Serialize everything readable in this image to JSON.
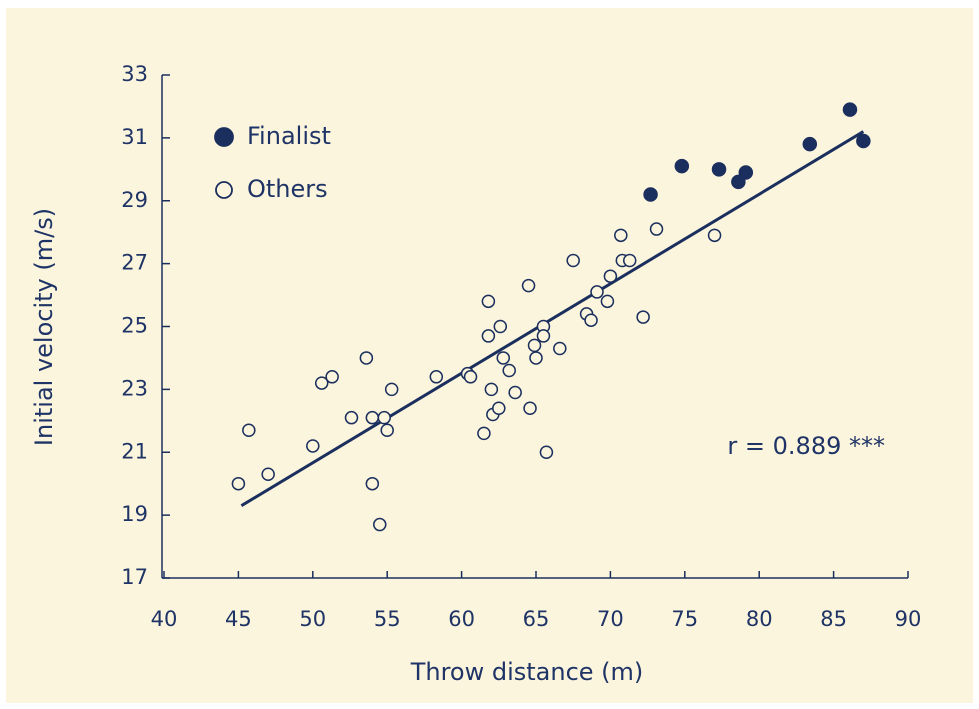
{
  "chart_data": {
    "type": "scatter",
    "xlabel": "Throw distance (m)",
    "ylabel": "Initial velocity (m/s)",
    "xlim": [
      40,
      90
    ],
    "xticks": [
      40,
      45,
      50,
      55,
      60,
      65,
      70,
      75,
      80,
      85,
      90
    ],
    "ylim": [
      17,
      33
    ],
    "yticks": [
      17,
      19,
      21,
      23,
      25,
      27,
      29,
      31,
      33
    ],
    "legend": "upper left",
    "annotation": "r = 0.889 ***",
    "trendline": {
      "x": [
        45.2,
        87.0
      ],
      "y": [
        19.3,
        31.2
      ],
      "color": "#1b2f5e"
    },
    "series": [
      {
        "name": "Finalist",
        "color": "#1b2f5e",
        "marker": "filled",
        "x": [
          72.7,
          74.8,
          77.3,
          78.6,
          79.1,
          83.4,
          86.1,
          87.0
        ],
        "values": [
          29.2,
          30.1,
          30.0,
          29.6,
          29.9,
          30.8,
          31.9,
          30.9
        ]
      },
      {
        "name": "Others",
        "color": "#1b2f5e",
        "marker": "open",
        "x": [
          45.0,
          45.7,
          47.0,
          50.0,
          50.6,
          51.3,
          52.6,
          53.6,
          54.0,
          54.0,
          54.5,
          54.8,
          55.0,
          55.3,
          58.3,
          60.4,
          60.6,
          61.5,
          61.8,
          61.8,
          62.0,
          62.1,
          62.5,
          62.6,
          62.8,
          63.2,
          63.6,
          64.5,
          64.6,
          64.9,
          65.0,
          65.5,
          65.5,
          65.7,
          66.6,
          67.5,
          68.4,
          68.7,
          69.1,
          69.8,
          70.0,
          70.7,
          70.8,
          71.3,
          72.2,
          73.1,
          77.0
        ],
        "values": [
          20.0,
          21.7,
          20.3,
          21.2,
          23.2,
          23.4,
          22.1,
          24.0,
          20.0,
          22.1,
          18.7,
          22.1,
          21.7,
          23.0,
          23.4,
          23.5,
          23.4,
          21.6,
          25.8,
          24.7,
          23.0,
          22.2,
          22.4,
          25.0,
          24.0,
          23.6,
          22.9,
          26.3,
          22.4,
          24.4,
          24.0,
          25.0,
          24.7,
          21.0,
          24.3,
          27.1,
          25.4,
          25.2,
          26.1,
          25.8,
          26.6,
          27.9,
          27.1,
          27.1,
          25.3,
          28.1,
          27.9
        ]
      }
    ]
  }
}
